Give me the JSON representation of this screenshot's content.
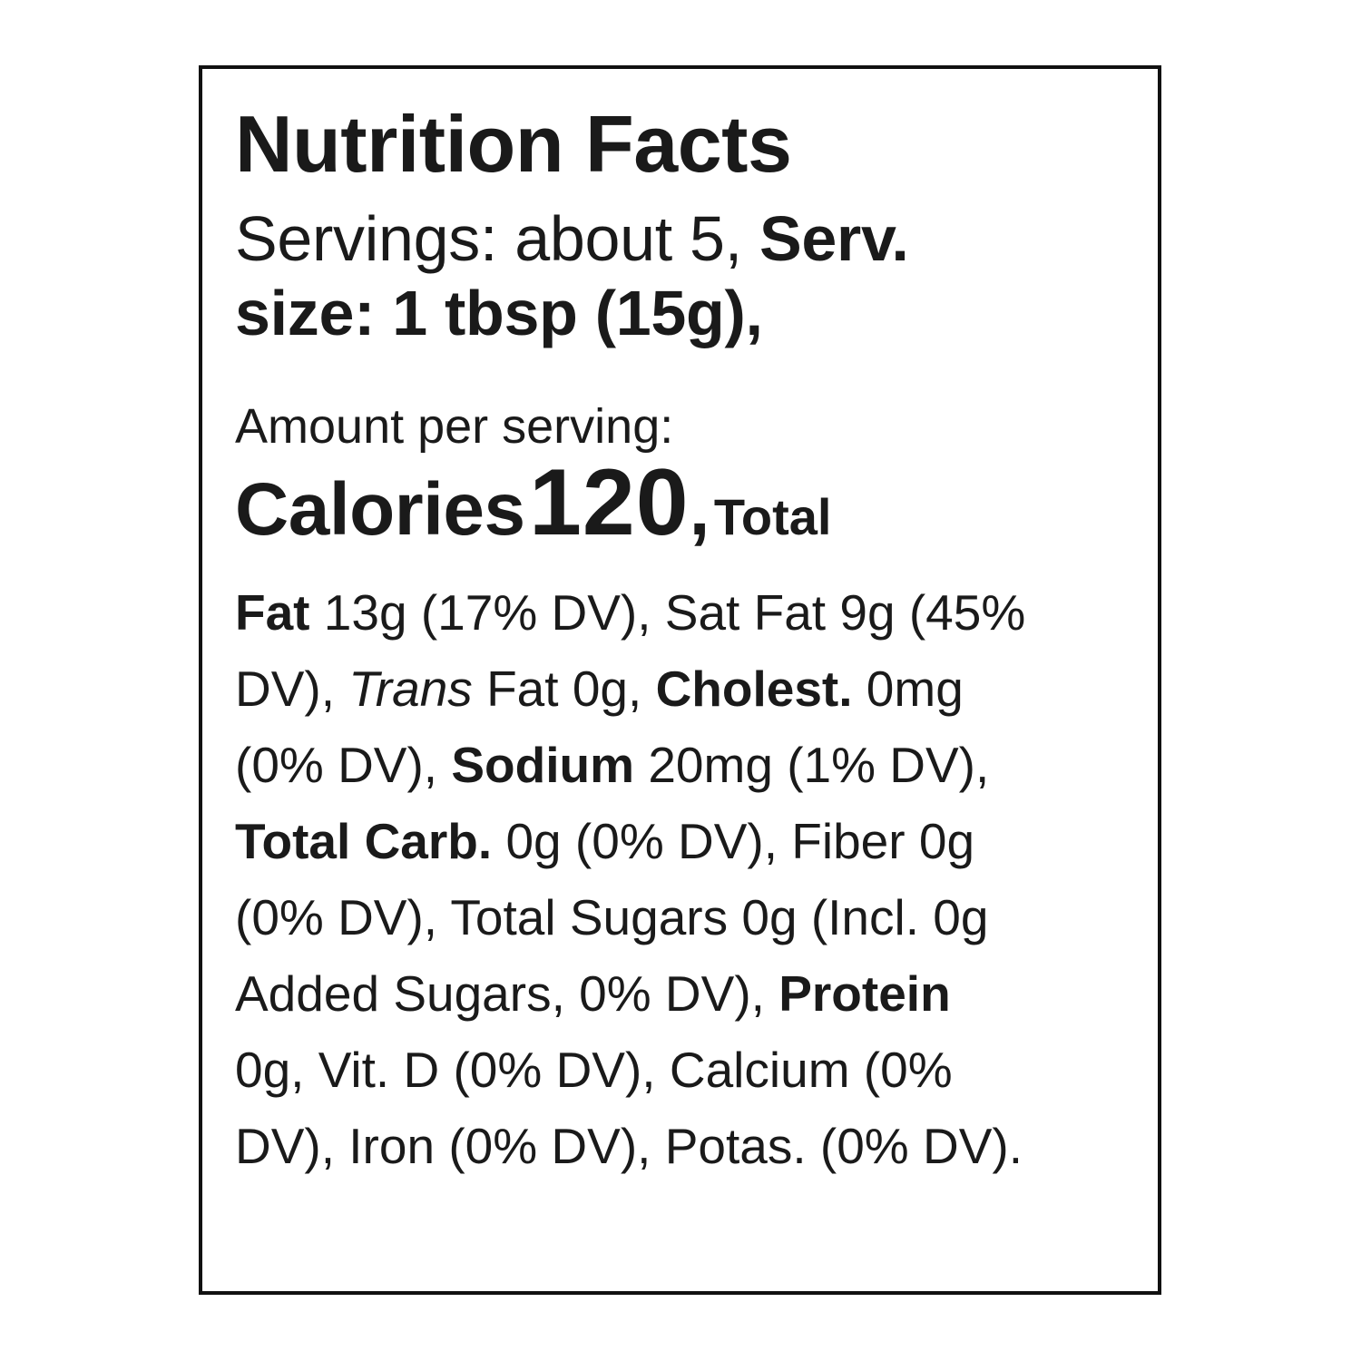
{
  "label": {
    "title": "Nutrition Facts",
    "servings_prefix": "Servings: about 5, ",
    "serv_label_a": "Serv.",
    "serv_label_b": "size: 1 tbsp (15g),",
    "amount_per_serving": "Amount per serving:",
    "calories_label": "Calories",
    "calories_value": "120",
    "calories_comma": ",",
    "total_word": "Total",
    "rows": [
      [
        {
          "t": "Fat",
          "b": true
        },
        {
          "t": " 13g (17% DV), Sat Fat 9g (45%"
        }
      ],
      [
        {
          "t": "DV), "
        },
        {
          "t": "Trans",
          "i": true
        },
        {
          "t": " Fat 0g, "
        },
        {
          "t": "Cholest.",
          "b": true
        },
        {
          "t": " 0mg"
        }
      ],
      [
        {
          "t": "(0% DV), "
        },
        {
          "t": "Sodium",
          "b": true
        },
        {
          "t": " 20mg (1% DV),"
        }
      ],
      [
        {
          "t": "Total Carb.",
          "b": true
        },
        {
          "t": " 0g (0% DV), Fiber 0g"
        }
      ],
      [
        {
          "t": "(0% DV), Total Sugars 0g (Incl. 0g"
        }
      ],
      [
        {
          "t": "Added Sugars, 0% DV), "
        },
        {
          "t": "Protein",
          "b": true
        }
      ],
      [
        {
          "t": "0g, Vit. D (0% DV), Calcium (0%"
        }
      ],
      [
        {
          "t": "DV), Iron (0% DV), Potas. (0% DV)."
        }
      ]
    ]
  }
}
